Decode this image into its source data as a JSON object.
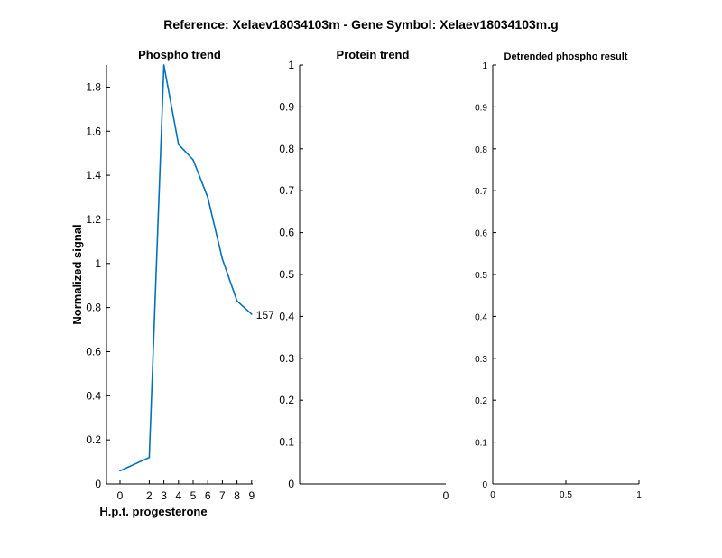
{
  "suptitle": "Reference:  Xelaev18034103m - Gene Symbol:  Xelaev18034103m.g",
  "chart_data": [
    {
      "type": "line",
      "title": "Phospho trend",
      "xlabel": "H.p.t. progesterone",
      "ylabel": "Normalized signal",
      "x": [
        0,
        2,
        3,
        4,
        5,
        6,
        7,
        8,
        9
      ],
      "xticks": [
        "0",
        "2",
        "3",
        "4",
        "5",
        "6",
        "7",
        "8",
        "9"
      ],
      "ylim": [
        0,
        1.9
      ],
      "yticks": [
        "0",
        "0.2",
        "0.4",
        "0.6",
        "0.8",
        "1",
        "1.2",
        "1.4",
        "1.6",
        "1.8"
      ],
      "series": [
        {
          "values": [
            0.06,
            0.12,
            1.9,
            1.54,
            1.47,
            1.3,
            1.02,
            0.83,
            0.77
          ],
          "color": "#0072BD",
          "end_label": "157"
        }
      ],
      "grid": false
    },
    {
      "type": "line",
      "title": "Protein trend",
      "xlabel": "",
      "ylabel": "",
      "xticks": [
        "0"
      ],
      "ylim": [
        0,
        1
      ],
      "yticks": [
        "0",
        "0.1",
        "0.2",
        "0.3",
        "0.4",
        "0.5",
        "0.6",
        "0.7",
        "0.8",
        "0.9",
        "1"
      ],
      "series": [],
      "grid": false
    },
    {
      "type": "line",
      "title": "Detrended phospho result",
      "xlabel": "",
      "ylabel": "",
      "xlim": [
        0,
        1
      ],
      "xticks": [
        "0",
        "0.5",
        "1"
      ],
      "ylim": [
        0,
        1
      ],
      "yticks": [
        "0",
        "0.1",
        "0.2",
        "0.3",
        "0.4",
        "0.5",
        "0.6",
        "0.7",
        "0.8",
        "0.9",
        "1"
      ],
      "series": [],
      "grid": false
    }
  ]
}
